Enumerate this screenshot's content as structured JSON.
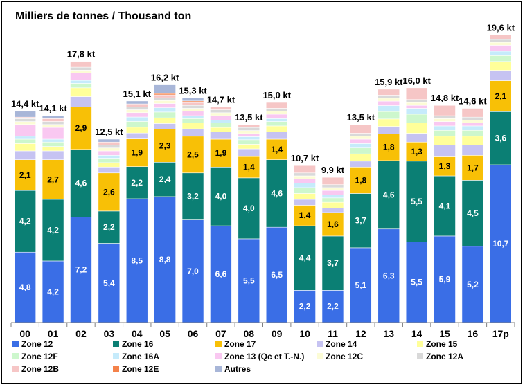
{
  "chart_data": {
    "type": "bar",
    "stacked": true,
    "title": "Milliers de tonnes / Thousand ton",
    "categories": [
      "00",
      "01",
      "02",
      "03",
      "04",
      "05",
      "06",
      "07",
      "08",
      "09",
      "10",
      "11",
      "12",
      "13",
      "14",
      "15",
      "16",
      "17p"
    ],
    "totals": [
      14.4,
      14.1,
      17.8,
      12.5,
      15.1,
      16.2,
      15.3,
      14.7,
      13.5,
      15.0,
      10.7,
      9.9,
      13.5,
      15.9,
      16.0,
      14.8,
      14.6,
      19.6
    ],
    "total_labels": [
      "14,4 kt",
      "14,1 kt",
      "17,8 kt",
      "12,5 kt",
      "15,1 kt",
      "16,2 kt",
      "15,3 kt",
      "14,7 kt",
      "13,5 kt",
      "15,0 kt",
      "10,7 kt",
      "9,9 kt",
      "13,5 kt",
      "15,9 kt",
      "16,0 kt",
      "14,8 kt",
      "14,6 kt",
      "19,6 kt"
    ],
    "ylim": [
      0,
      20
    ],
    "legend_position": "bottom",
    "series": [
      {
        "name": "Zone 12",
        "color": "#3a6ee6",
        "label_color": "#ffffff",
        "values": [
          4.8,
          4.2,
          7.2,
          5.4,
          8.5,
          8.8,
          7.0,
          6.6,
          5.5,
          6.5,
          2.2,
          2.2,
          5.1,
          6.3,
          5.5,
          5.9,
          5.2,
          10.7
        ],
        "labels": [
          "4,8",
          "4,2",
          "7,2",
          "5,4",
          "8,5",
          "8,8",
          "7,0",
          "6,6",
          "5,5",
          "6,5",
          "2,2",
          "2,2",
          "5,1",
          "6,3",
          "5,5",
          "5,9",
          "5,2",
          "10,7"
        ]
      },
      {
        "name": "Zone 16",
        "color": "#0b7f74",
        "label_color": "#ffffff",
        "values": [
          4.2,
          4.2,
          4.6,
          2.2,
          2.2,
          2.4,
          3.2,
          4.0,
          4.0,
          4.6,
          4.4,
          3.7,
          3.7,
          4.6,
          5.5,
          4.1,
          4.5,
          3.6
        ],
        "labels": [
          "4,2",
          "4,2",
          "4,6",
          "2,2",
          "2,2",
          "2,4",
          "3,2",
          "4,0",
          "4,0",
          "4,6",
          "4,4",
          "3,7",
          "3,7",
          "4,6",
          "5,5",
          "4,1",
          "4,5",
          "3,6"
        ]
      },
      {
        "name": "Zone 17",
        "color": "#f8c006",
        "label_color": "#000000",
        "values": [
          2.1,
          2.7,
          2.9,
          2.6,
          1.9,
          2.3,
          2.5,
          1.9,
          1.4,
          1.4,
          1.4,
          1.6,
          1.8,
          1.8,
          1.3,
          1.3,
          1.7,
          2.1
        ],
        "labels": [
          "2,1",
          "2,7",
          "2,9",
          "2,6",
          "1,9",
          "2,3",
          "2,5",
          "1,9",
          "1,4",
          "1,4",
          "1,4",
          "1,6",
          "1,8",
          "1,8",
          "1,3",
          "1,3",
          "1,7",
          "2,1"
        ]
      },
      {
        "name": "Zone 14",
        "color": "#c6c3f2",
        "values": [
          0.6,
          0.6,
          0.7,
          0.4,
          0.4,
          0.4,
          0.5,
          0.5,
          0.5,
          0.5,
          0.4,
          0.3,
          0.4,
          0.5,
          0.6,
          0.8,
          0.7,
          0.7
        ]
      },
      {
        "name": "Zone 15",
        "color": "#ffff9a",
        "values": [
          0.5,
          0.3,
          0.6,
          0.3,
          0.4,
          0.4,
          0.4,
          0.3,
          0.3,
          0.4,
          0.4,
          0.4,
          0.5,
          0.5,
          0.7,
          0.6,
          0.6,
          0.6
        ]
      },
      {
        "name": "Zone 12F",
        "color": "#cdf7cd",
        "values": [
          0.3,
          0.3,
          0.3,
          0.3,
          0.4,
          0.4,
          0.3,
          0.3,
          0.3,
          0.3,
          0.4,
          0.3,
          0.4,
          0.5,
          0.6,
          0.4,
          0.4,
          0.4
        ]
      },
      {
        "name": "Zone 16A",
        "color": "#c6ebfb",
        "values": [
          0.2,
          0.2,
          0.2,
          0.2,
          0.3,
          0.3,
          0.2,
          0.2,
          0.2,
          0.2,
          0.3,
          0.2,
          0.3,
          0.4,
          0.4,
          0.3,
          0.3,
          0.3
        ]
      },
      {
        "name": "Zone 13 (Qc et T.-N.)",
        "color": "#f9c8f1",
        "values": [
          0.8,
          0.8,
          0.5,
          0.3,
          0.3,
          0.3,
          0.3,
          0.3,
          0.2,
          0.3,
          0.3,
          0.3,
          0.3,
          0.3,
          0.2,
          0.3,
          0.2,
          0.4
        ]
      },
      {
        "name": "Zone 12C",
        "color": "#fcfcd6",
        "values": [
          0.2,
          0.2,
          0.2,
          0.2,
          0.2,
          0.2,
          0.2,
          0.2,
          0.2,
          0.2,
          0.2,
          0.2,
          0.2,
          0.2,
          0.2,
          0.2,
          0.2,
          0.2
        ]
      },
      {
        "name": "Zone 12A",
        "color": "#d9d9d9",
        "values": [
          0.2,
          0.2,
          0.2,
          0.2,
          0.2,
          0.2,
          0.2,
          0.2,
          0.2,
          0.2,
          0.2,
          0.2,
          0.2,
          0.2,
          0.2,
          0.2,
          0.2,
          0.2
        ]
      },
      {
        "name": "Zone 12B",
        "color": "#f6c6c6",
        "values": [
          0.1,
          0.2,
          0.4,
          0.2,
          0.2,
          0.2,
          0.2,
          0.2,
          0.2,
          0.4,
          0.5,
          0.5,
          0.6,
          0.4,
          0.8,
          0.7,
          0.6,
          0.3
        ]
      },
      {
        "name": "Zone 12E",
        "color": "#f4824a",
        "values": [
          0,
          0,
          0,
          0,
          0,
          0.1,
          0.1,
          0,
          0,
          0,
          0,
          0,
          0,
          0,
          0,
          0,
          0,
          0
        ]
      },
      {
        "name": "Autres",
        "color": "#a8b6d8",
        "values": [
          0.4,
          0.2,
          0,
          0.2,
          0.2,
          0.6,
          0.2,
          0,
          0,
          0,
          0,
          0,
          0,
          0,
          0,
          0,
          0,
          0
        ]
      }
    ]
  }
}
